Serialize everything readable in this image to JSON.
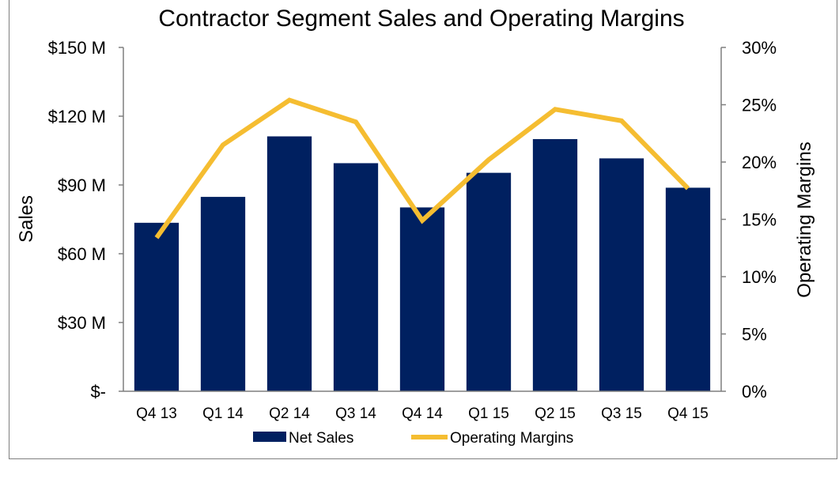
{
  "chart_data": {
    "type": "bar",
    "title": "Contractor Segment Sales and Operating Margins",
    "categories": [
      "Q4 13",
      "Q1 14",
      "Q2 14",
      "Q3 14",
      "Q4 14",
      "Q1 15",
      "Q2 15",
      "Q3 15",
      "Q4 15"
    ],
    "series": [
      {
        "name": "Net Sales",
        "type": "bar",
        "axis": "left",
        "color": "#002060",
        "values": [
          73.5,
          84.8,
          111.2,
          99.5,
          80.2,
          95.3,
          110.0,
          101.6,
          88.8
        ]
      },
      {
        "name": "Operating Margins",
        "type": "line",
        "axis": "right",
        "color": "#f5bd31",
        "values": [
          13.4,
          21.5,
          25.4,
          23.5,
          14.9,
          20.2,
          24.6,
          23.6,
          17.7
        ]
      }
    ],
    "ylabel": "Sales",
    "y2label": "Operating Margins",
    "ylim": [
      0,
      150
    ],
    "y2lim": [
      0,
      30
    ],
    "y_ticks": [
      "$-",
      "$30 M",
      "$60 M",
      "$90 M",
      "$120 M",
      "$150 M"
    ],
    "y2_ticks": [
      "0%",
      "5%",
      "10%",
      "15%",
      "20%",
      "25%",
      "30%"
    ],
    "grid": false,
    "legend_position": "bottom"
  }
}
